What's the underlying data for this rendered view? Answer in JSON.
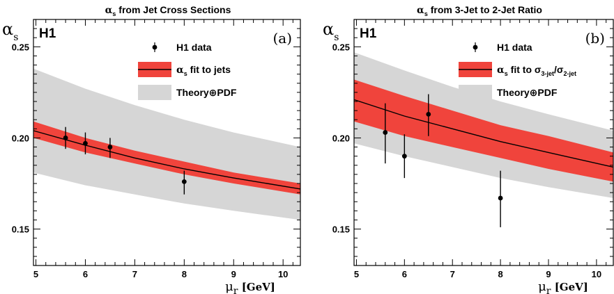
{
  "chart_data": [
    {
      "type": "line",
      "panel_label": "(a)",
      "experiment": "H1",
      "title_symbol": "α",
      "title_sub": "s",
      "title_rest": " from Jet Cross Sections",
      "ylabel_symbol": "α",
      "ylabel_sub": "s",
      "xlabel_symbol": "μ",
      "xlabel_sub": "r",
      "xlabel_unit": "[GeV]",
      "xlim": [
        4.95,
        10.35
      ],
      "ylim": [
        0.13,
        0.265
      ],
      "xticks": [
        "5",
        "6",
        "7",
        "8",
        "9",
        "10"
      ],
      "yticks": [
        "0.15",
        "0.20",
        "0.25"
      ],
      "legend": {
        "data_label": "H1 data",
        "fit_symbol": "α",
        "fit_sub": "s",
        "fit_label": " fit to jets",
        "fit_label_sub1": "",
        "fit_label_mid": "",
        "fit_label_sub2": "",
        "theory_label": "Theory⊕PDF"
      },
      "fit_curve": {
        "x": [
          4.95,
          6,
          7,
          8,
          9,
          10.35
        ],
        "y": [
          0.204,
          0.196,
          0.189,
          0.183,
          0.178,
          0.172
        ],
        "band_low": [
          0.2,
          0.192,
          0.186,
          0.18,
          0.175,
          0.169
        ],
        "band_high": [
          0.209,
          0.2,
          0.193,
          0.187,
          0.181,
          0.175
        ]
      },
      "theory_band": {
        "x": [
          4.95,
          6,
          7,
          8,
          9,
          10.35
        ],
        "low": [
          0.181,
          0.174,
          0.169,
          0.164,
          0.16,
          0.155
        ],
        "high": [
          0.238,
          0.227,
          0.218,
          0.21,
          0.203,
          0.195
        ]
      },
      "data_points": {
        "x": [
          5.6,
          6.0,
          6.5,
          8.0
        ],
        "y": [
          0.2,
          0.197,
          0.195,
          0.176
        ],
        "err_low": [
          0.006,
          0.006,
          0.006,
          0.007
        ],
        "err_high": [
          0.006,
          0.006,
          0.005,
          0.006
        ]
      },
      "colors": {
        "fit_band": "#f0443c",
        "theory_band": "#d6d6d6",
        "line": "#000000",
        "points": "#000000"
      }
    },
    {
      "type": "line",
      "panel_label": "(b)",
      "experiment": "H1",
      "title_symbol": "α",
      "title_sub": "s",
      "title_rest": " from 3-Jet to 2-Jet Ratio",
      "ylabel_symbol": "α",
      "ylabel_sub": "s",
      "xlabel_symbol": "μ",
      "xlabel_sub": "r",
      "xlabel_unit": "[GeV]",
      "xlim": [
        4.95,
        10.35
      ],
      "ylim": [
        0.13,
        0.265
      ],
      "xticks": [
        "5",
        "6",
        "7",
        "8",
        "9",
        "10"
      ],
      "yticks": [
        "0.15",
        "0.20",
        "0.25"
      ],
      "legend": {
        "data_label": "H1 data",
        "fit_symbol": "α",
        "fit_sub": "s",
        "fit_label": " fit to σ",
        "fit_label_sub1": "3-jet",
        "fit_label_mid": "/σ",
        "fit_label_sub2": "2-jet",
        "theory_label": "Theory⊕PDF"
      },
      "fit_curve": {
        "x": [
          4.95,
          6,
          7,
          8,
          9,
          10.35
        ],
        "y": [
          0.221,
          0.212,
          0.205,
          0.198,
          0.192,
          0.184
        ],
        "band_low": [
          0.209,
          0.201,
          0.195,
          0.189,
          0.183,
          0.176
        ],
        "band_high": [
          0.232,
          0.223,
          0.215,
          0.207,
          0.201,
          0.192
        ]
      },
      "theory_band": {
        "x": [
          4.95,
          6,
          7,
          8,
          9,
          10.35
        ],
        "low": [
          0.197,
          0.19,
          0.184,
          0.178,
          0.173,
          0.167
        ],
        "high": [
          0.247,
          0.237,
          0.228,
          0.22,
          0.213,
          0.204
        ]
      },
      "data_points": {
        "x": [
          5.6,
          6.0,
          6.5,
          8.0
        ],
        "y": [
          0.203,
          0.19,
          0.213,
          0.167
        ],
        "err_low": [
          0.017,
          0.012,
          0.012,
          0.016
        ],
        "err_high": [
          0.016,
          0.012,
          0.011,
          0.015
        ]
      },
      "colors": {
        "fit_band": "#f0443c",
        "theory_band": "#d6d6d6",
        "line": "#000000",
        "points": "#000000"
      }
    }
  ]
}
